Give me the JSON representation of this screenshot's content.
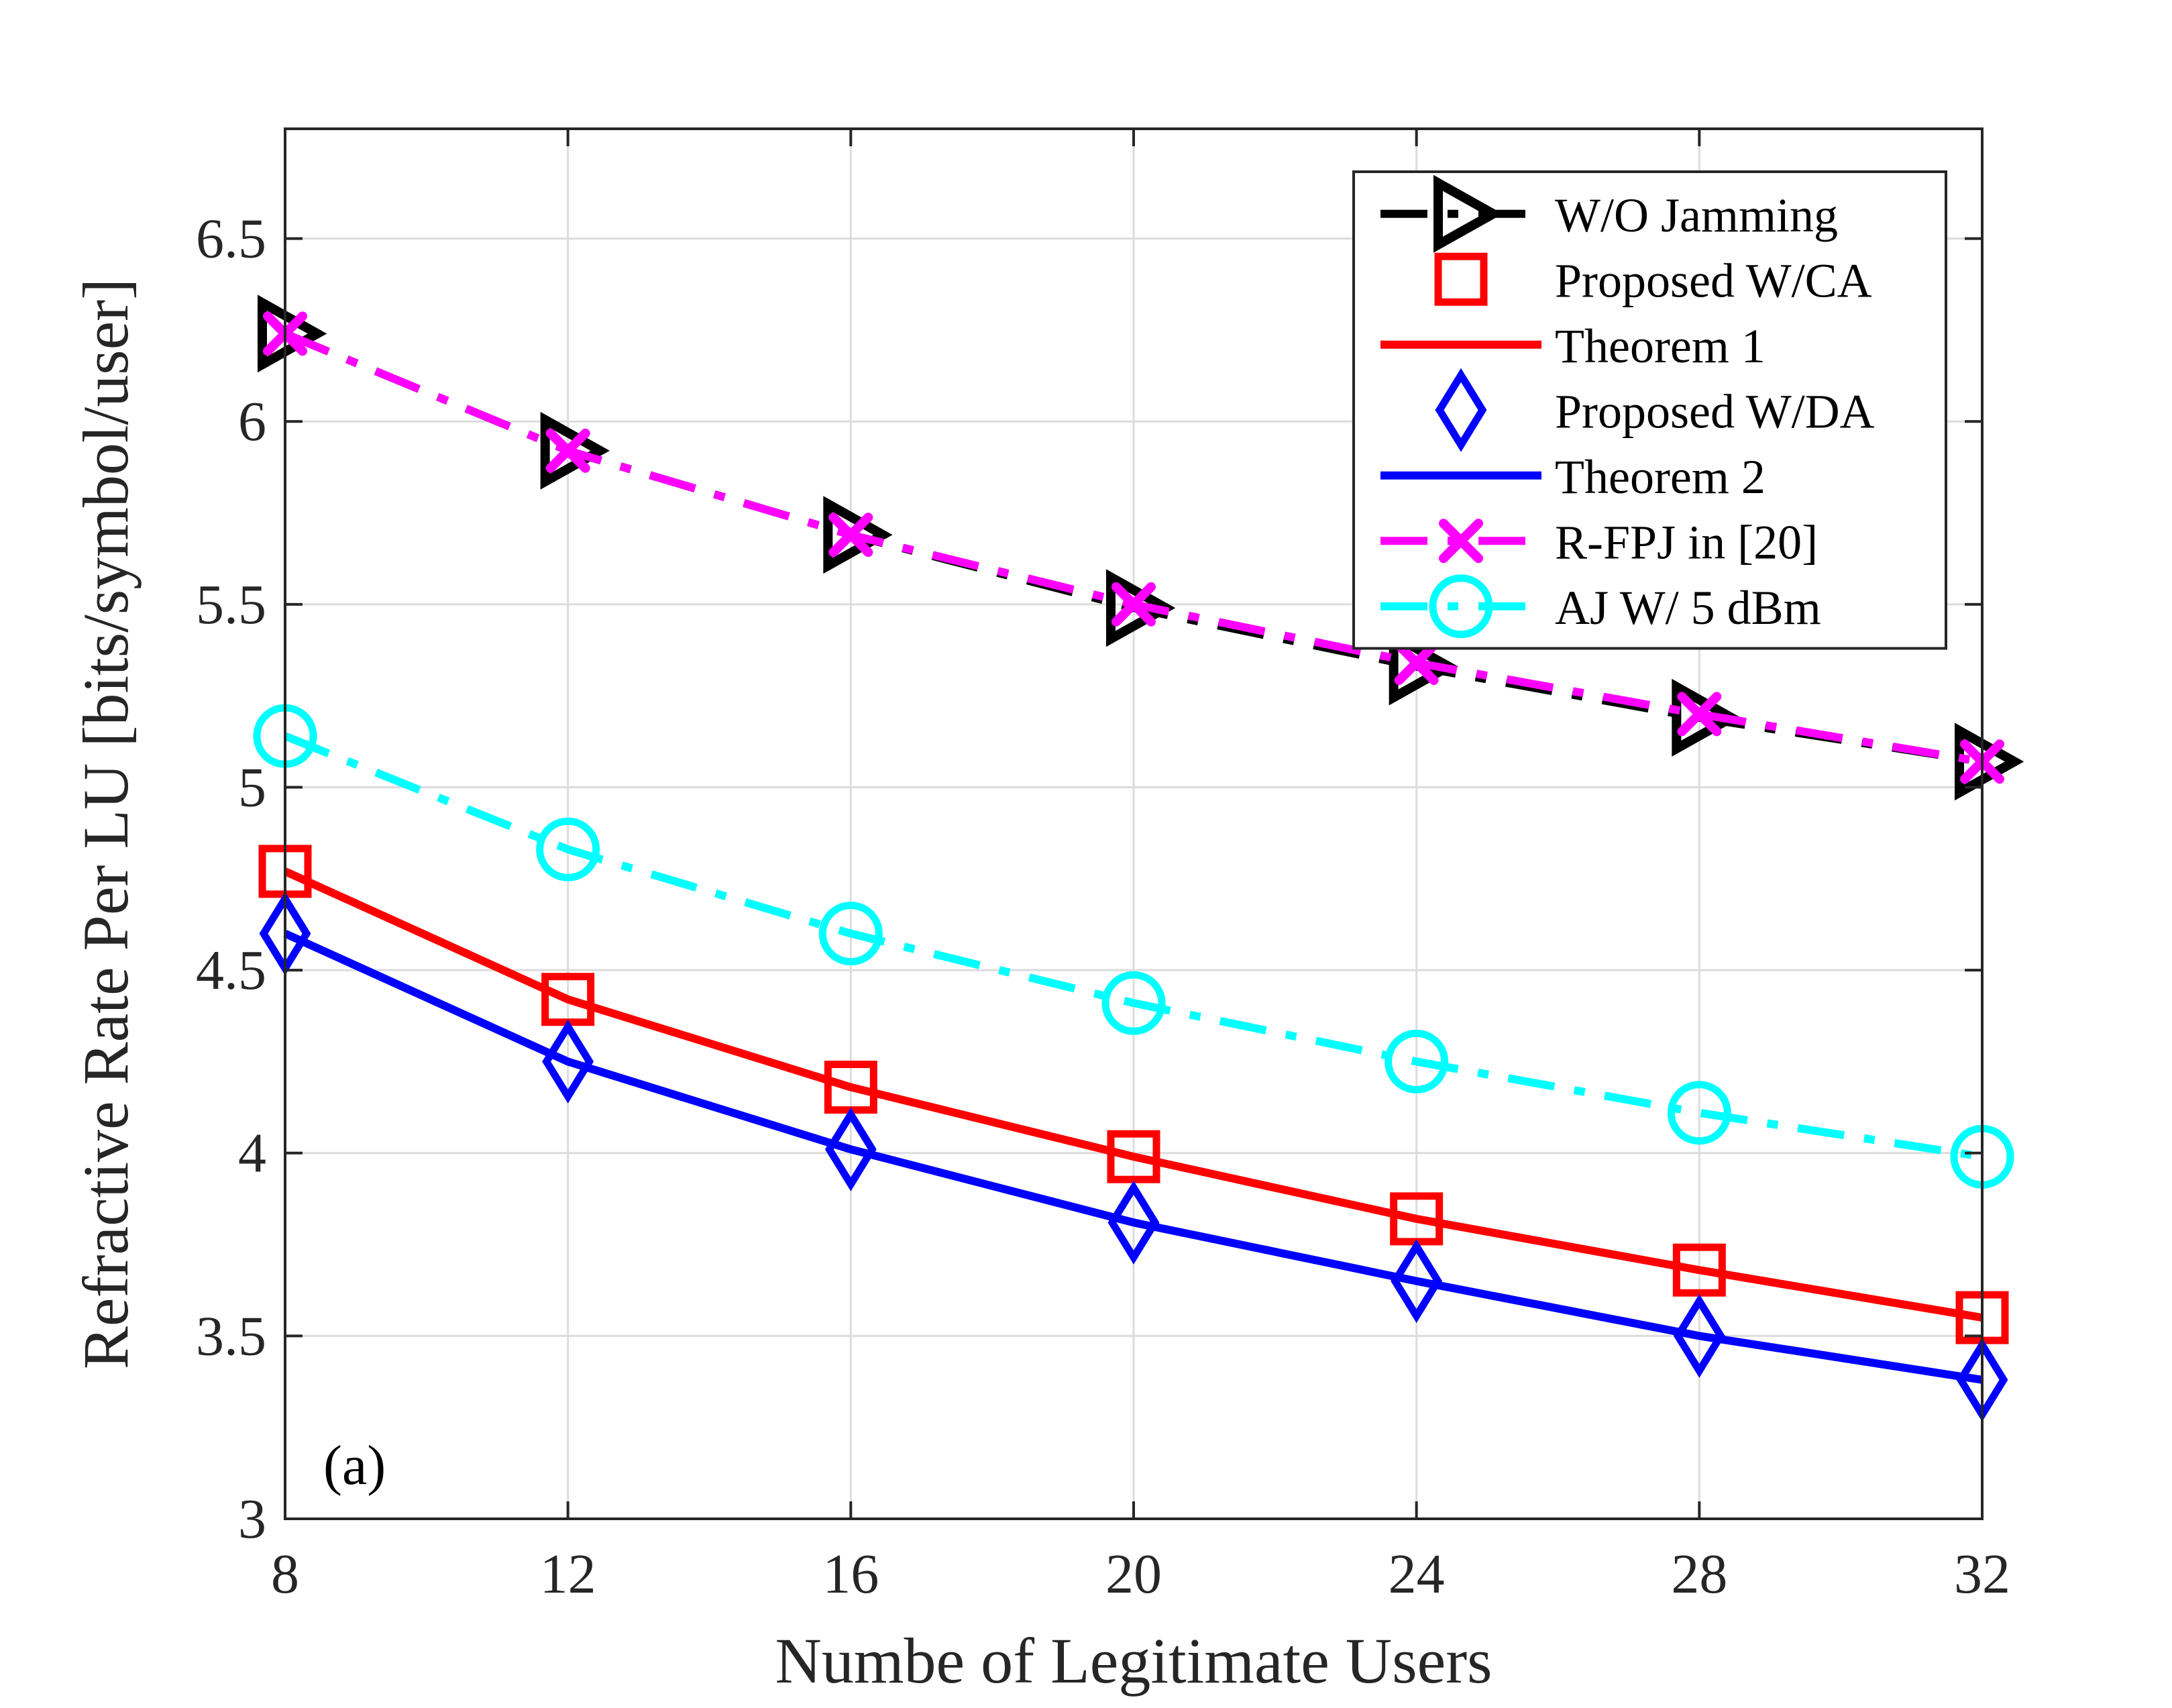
{
  "chart_data": {
    "type": "line",
    "xlabel": "Numbe of Legitimate Users",
    "ylabel": "Refractive Rate Per LU [bits/symbol/user]",
    "x": [
      8,
      12,
      16,
      20,
      24,
      28,
      32
    ],
    "xticks": [
      "8",
      "12",
      "16",
      "20",
      "24",
      "28",
      "32"
    ],
    "yticks": [
      "3",
      "3.5",
      "4",
      "4.5",
      "5",
      "5.5",
      "6",
      "6.5"
    ],
    "xlim": [
      8,
      32
    ],
    "ylim": [
      3,
      6.8
    ],
    "grid": true,
    "legend_position": "top-right",
    "annotation": "(a)",
    "series": [
      {
        "name": "W/O Jamming",
        "color": "#000000",
        "line": "dashdot",
        "marker": "triangle-right",
        "values": [
          6.24,
          5.92,
          5.69,
          5.49,
          5.33,
          5.19,
          5.07
        ]
      },
      {
        "name": "Proposed W/CA",
        "color": "#ff0000",
        "line": "none",
        "marker": "square",
        "values": [
          4.77,
          4.42,
          4.18,
          3.99,
          3.82,
          3.68,
          3.55
        ]
      },
      {
        "name": "Theorem 1",
        "color": "#ff0000",
        "line": "solid",
        "marker": "none",
        "values": [
          4.77,
          4.42,
          4.18,
          3.99,
          3.82,
          3.68,
          3.55
        ]
      },
      {
        "name": "Proposed W/DA",
        "color": "#0000ff",
        "line": "none",
        "marker": "diamond",
        "values": [
          4.6,
          4.25,
          4.01,
          3.81,
          3.65,
          3.5,
          3.38
        ]
      },
      {
        "name": "Theorem 2",
        "color": "#0000ff",
        "line": "solid",
        "marker": "none",
        "values": [
          4.6,
          4.25,
          4.01,
          3.81,
          3.65,
          3.5,
          3.38
        ]
      },
      {
        "name": "R-FPJ in [20]",
        "color": "#ff00ff",
        "line": "dashdot",
        "marker": "x",
        "values": [
          6.24,
          5.92,
          5.69,
          5.5,
          5.34,
          5.2,
          5.07
        ]
      },
      {
        "name": "AJ W/ 5 dBm",
        "color": "#00ffff",
        "line": "dashdot",
        "marker": "circle",
        "values": [
          5.14,
          4.83,
          4.6,
          4.41,
          4.25,
          4.11,
          3.99
        ]
      }
    ]
  }
}
